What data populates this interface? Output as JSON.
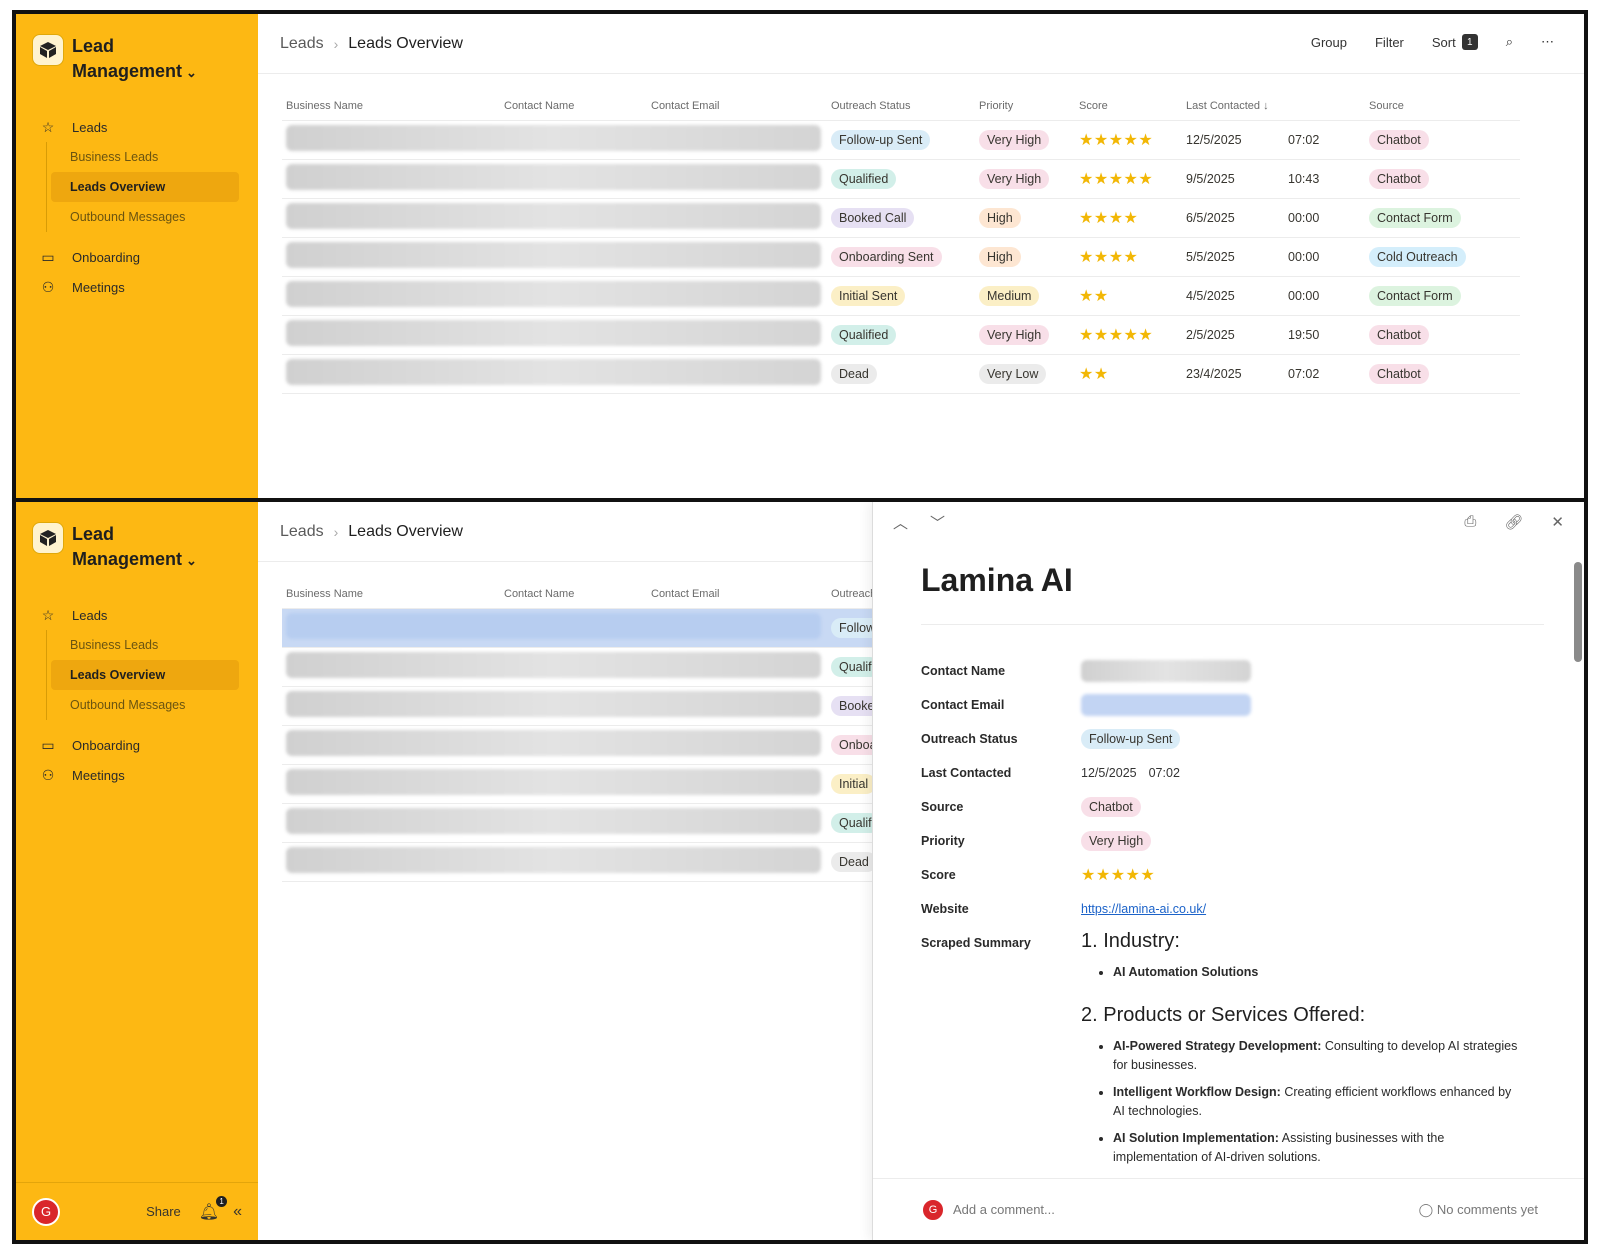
{
  "workspace": {
    "title": "Lead Management"
  },
  "nav": {
    "leads": "Leads",
    "business_leads": "Business Leads",
    "leads_overview": "Leads Overview",
    "outbound": "Outbound Messages",
    "onboarding": "Onboarding",
    "meetings": "Meetings"
  },
  "footer": {
    "avatar": "G",
    "share": "Share",
    "notif_count": "1"
  },
  "breadcrumb": {
    "parent": "Leads",
    "current": "Leads Overview"
  },
  "toolbar": {
    "group": "Group",
    "filter": "Filter",
    "sort": "Sort",
    "sort_count": "1"
  },
  "columns": [
    "Business Name",
    "Contact Name",
    "Contact Email",
    "Outreach Status",
    "Priority",
    "Score",
    "Last Contacted",
    "Source"
  ],
  "rows": [
    {
      "status": "Follow-up Sent",
      "priority": "Very High",
      "score": "★★★★★",
      "date": "12/5/2025",
      "time": "07:02",
      "source": "Chatbot"
    },
    {
      "status": "Qualified",
      "priority": "Very High",
      "score": "★★★★★",
      "date": "9/5/2025",
      "time": "10:43",
      "source": "Chatbot"
    },
    {
      "status": "Booked Call",
      "priority": "High",
      "score": "★★★★",
      "date": "6/5/2025",
      "time": "00:00",
      "source": "Contact Form"
    },
    {
      "status": "Onboarding Sent",
      "priority": "High",
      "score": "★★★★",
      "date": "5/5/2025",
      "time": "00:00",
      "source": "Cold Outreach"
    },
    {
      "status": "Initial Sent",
      "priority": "Medium",
      "score": "★★",
      "date": "4/5/2025",
      "time": "00:00",
      "source": "Contact Form"
    },
    {
      "status": "Qualified",
      "priority": "Very High",
      "score": "★★★★★",
      "date": "2/5/2025",
      "time": "19:50",
      "source": "Chatbot"
    },
    {
      "status": "Dead",
      "priority": "Very Low",
      "score": "★★",
      "date": "23/4/2025",
      "time": "07:02",
      "source": "Chatbot"
    }
  ],
  "bottom_status_cut": [
    "Follow",
    "Qualif",
    "Booke",
    "Onboa",
    "Initial",
    "Qualif",
    "Dead"
  ],
  "bottom_header_cut": "Outreach",
  "detail": {
    "title": "Lamina AI",
    "labels": {
      "contact_name": "Contact Name",
      "contact_email": "Contact Email",
      "outreach_status": "Outreach Status",
      "last_contacted": "Last Contacted",
      "source": "Source",
      "priority": "Priority",
      "score": "Score",
      "website": "Website",
      "summary": "Scraped Summary"
    },
    "outreach_status": "Follow-up Sent",
    "last_contacted_date": "12/5/2025",
    "last_contacted_time": "07:02",
    "source": "Chatbot",
    "priority": "Very High",
    "score": "★★★★★",
    "website": "https://lamina-ai.co.uk/",
    "industry_heading": "1. Industry:",
    "industry_item": "AI Automation Solutions",
    "products_heading": "2. Products or Services Offered:",
    "products": [
      {
        "name": "AI-Powered Strategy Development:",
        "desc": " Consulting to develop AI strategies for businesses."
      },
      {
        "name": "Intelligent Workflow Design:",
        "desc": " Creating efficient workflows enhanced by AI technologies."
      },
      {
        "name": "AI Solution Implementation:",
        "desc": " Assisting businesses with the implementation of AI-driven solutions."
      }
    ],
    "comment_placeholder": "Add a comment...",
    "no_comments": "No comments yet"
  }
}
